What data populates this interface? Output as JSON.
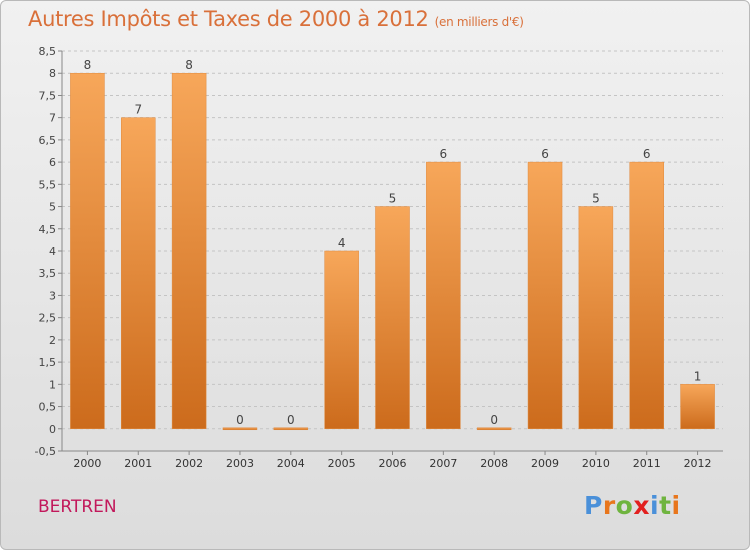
{
  "header": {
    "title": "Autres Impôts et Taxes de 2000 à 2012",
    "unit_note": "(en milliers d'€)"
  },
  "footer": {
    "commune": "BERTREN",
    "brand": "Proxiti"
  },
  "colors": {
    "title": "#d9703a",
    "commune": "#c2185b",
    "bar_light": "#f7a75a",
    "bar_dark": "#cc6b1c",
    "brand_letters": [
      "#4a90d9",
      "#e8761c",
      "#6fb43f",
      "#e2201f",
      "#4a90d9",
      "#6fb43f",
      "#e8761c"
    ]
  },
  "chart_data": {
    "type": "bar",
    "categories": [
      "2000",
      "2001",
      "2002",
      "2003",
      "2004",
      "2005",
      "2006",
      "2007",
      "2008",
      "2009",
      "2010",
      "2011",
      "2012"
    ],
    "values": [
      8,
      7,
      8,
      0,
      0,
      4,
      5,
      6,
      0,
      6,
      5,
      6,
      1
    ],
    "data_labels": [
      "8",
      "7",
      "8",
      "0",
      "0",
      "4",
      "5",
      "6",
      "0",
      "6",
      "5",
      "6",
      "1"
    ],
    "y_ticks": [
      -0.5,
      0,
      0.5,
      1,
      1.5,
      2,
      2.5,
      3,
      3.5,
      4,
      4.5,
      5,
      5.5,
      6,
      6.5,
      7,
      7.5,
      8,
      8.5
    ],
    "y_tick_labels": [
      "-0,5",
      "0",
      "0,5",
      "1",
      "1,5",
      "2",
      "2,5",
      "3",
      "3,5",
      "4",
      "4,5",
      "5",
      "5,5",
      "6",
      "6,5",
      "7",
      "7,5",
      "8",
      "8,5"
    ],
    "ylim": [
      -0.5,
      8.5
    ],
    "grid": "horizontal dashed",
    "legend": "none"
  }
}
